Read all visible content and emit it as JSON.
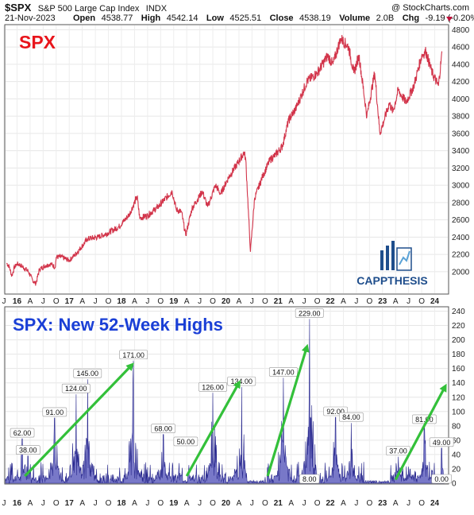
{
  "header": {
    "symbol": "$SPX",
    "name": "S&P 500 Large Cap Index",
    "exchange": "INDX",
    "copyright": "@ StockCharts.com",
    "date": "21-Nov-2023",
    "open_label": "Open",
    "open": "4538.77",
    "high_label": "High",
    "high": "4542.14",
    "low_label": "Low",
    "low": "4525.51",
    "close_label": "Close",
    "close": "4538.19",
    "volume_label": "Volume",
    "volume": "2.0B",
    "chg_label": "Chg",
    "chg": "-9.19 (-0.20%)"
  },
  "logo": {
    "text": "CAPPTHESIS"
  },
  "colors": {
    "price_line": "#d2344a",
    "highs_fill": "#7878c8",
    "highs_line": "#2a2a8e",
    "arrow": "#33c03a",
    "spx_label": "#e8141b",
    "panel2_label": "#1a3fd6",
    "logo_blue": "#1f4e8c"
  },
  "chart_data": [
    {
      "type": "line",
      "title": "SPX",
      "x_tick_labels": [
        "J",
        "16",
        "A",
        "J",
        "O",
        "17",
        "A",
        "J",
        "O",
        "18",
        "A",
        "J",
        "O",
        "19",
        "A",
        "J",
        "O",
        "20",
        "A",
        "J",
        "O",
        "21",
        "A",
        "J",
        "O",
        "22",
        "A",
        "J",
        "O",
        "23",
        "A",
        "J",
        "O",
        "24"
      ],
      "yticks": [
        2000,
        2200,
        2400,
        2600,
        2800,
        3000,
        3200,
        3400,
        3600,
        3800,
        4000,
        4200,
        4400,
        4600,
        4800
      ],
      "ylim": [
        1750,
        4850
      ],
      "x_units": "years",
      "xlim": [
        2015.53,
        2024.0
      ],
      "series": [
        {
          "x": [
            2015.55,
            2015.6,
            2015.65,
            2015.7,
            2015.75,
            2015.8,
            2015.88,
            2015.96,
            2016.05,
            2016.11,
            2016.18,
            2016.3,
            2016.4,
            2016.48,
            2016.5,
            2016.6,
            2016.75,
            2016.85,
            2016.95,
            2017.1,
            2017.3,
            2017.5,
            2017.7,
            2017.9,
            2018.05,
            2018.1,
            2018.25,
            2018.45,
            2018.72,
            2018.8,
            2018.9,
            2018.98,
            2019.1,
            2019.3,
            2019.4,
            2019.55,
            2019.65,
            2019.8,
            2019.95,
            2020.1,
            2020.13,
            2020.22,
            2020.3,
            2020.45,
            2020.6,
            2020.7,
            2020.83,
            2020.95,
            2021.1,
            2021.3,
            2021.5,
            2021.7,
            2021.8,
            2021.95,
            2022.1,
            2022.2,
            2022.3,
            2022.45,
            2022.6,
            2022.7,
            2022.78,
            2022.88,
            2022.95,
            2023.05,
            2023.2,
            2023.35,
            2023.5,
            2023.58,
            2023.7,
            2023.82,
            2023.89
          ],
          "y": [
            2100,
            2060,
            1950,
            2050,
            2090,
            2080,
            2045,
            2010,
            1900,
            1860,
            2030,
            2070,
            2090,
            2050,
            2170,
            2170,
            2130,
            2190,
            2260,
            2380,
            2400,
            2450,
            2520,
            2660,
            2870,
            2620,
            2650,
            2750,
            2930,
            2720,
            2690,
            2420,
            2730,
            2930,
            2750,
            3000,
            2900,
            3090,
            3230,
            3380,
            3300,
            2230,
            2850,
            3100,
            3300,
            3350,
            3450,
            3750,
            3900,
            4200,
            4300,
            4500,
            4400,
            4700,
            4600,
            4300,
            4500,
            3800,
            4300,
            3600,
            3750,
            3950,
            3850,
            4100,
            3960,
            4150,
            4500,
            4550,
            4300,
            4150,
            4538
          ]
        }
      ]
    },
    {
      "type": "area",
      "title": "SPX: New 52-Week Highs",
      "x_tick_labels": [
        "J",
        "16",
        "A",
        "J",
        "O",
        "17",
        "A",
        "J",
        "O",
        "18",
        "A",
        "J",
        "O",
        "19",
        "A",
        "J",
        "O",
        "20",
        "A",
        "J",
        "O",
        "21",
        "A",
        "J",
        "O",
        "22",
        "A",
        "J",
        "O",
        "23",
        "A",
        "J",
        "O",
        "24"
      ],
      "yticks": [
        0,
        20,
        40,
        60,
        80,
        100,
        120,
        140,
        160,
        180,
        200,
        220,
        240
      ],
      "ylim": [
        0,
        245
      ],
      "x_units": "years",
      "xlim": [
        2015.53,
        2024.0
      ],
      "peaks": [
        {
          "x": 2015.85,
          "y": 62,
          "label": "62.00"
        },
        {
          "x": 2015.96,
          "y": 38,
          "label": "38.00"
        },
        {
          "x": 2016.47,
          "y": 91,
          "label": "91.00"
        },
        {
          "x": 2016.88,
          "y": 124,
          "label": "124.00"
        },
        {
          "x": 2017.1,
          "y": 145,
          "label": "145.00"
        },
        {
          "x": 2017.98,
          "y": 171,
          "label": "171.00"
        },
        {
          "x": 2018.55,
          "y": 68,
          "label": "68.00"
        },
        {
          "x": 2018.98,
          "y": 50,
          "label": "50.00"
        },
        {
          "x": 2019.5,
          "y": 126,
          "label": "126.00"
        },
        {
          "x": 2020.05,
          "y": 134,
          "label": "134.00"
        },
        {
          "x": 2020.85,
          "y": 147,
          "label": "147.00"
        },
        {
          "x": 2021.35,
          "y": 229,
          "label": "229.00"
        },
        {
          "x": 2021.35,
          "y": 8,
          "label": "8.00"
        },
        {
          "x": 2021.85,
          "y": 92,
          "label": "92.00"
        },
        {
          "x": 2022.15,
          "y": 84,
          "label": "84.00"
        },
        {
          "x": 2023.05,
          "y": 37,
          "label": "37.00"
        },
        {
          "x": 2023.55,
          "y": 81,
          "label": "81.00"
        },
        {
          "x": 2023.88,
          "y": 49,
          "label": "49.00"
        },
        {
          "x": 2023.88,
          "y": 0,
          "label": "0.00"
        }
      ],
      "trend_arrows": [
        {
          "from": [
            2015.9,
            10
          ],
          "to": [
            2017.95,
            165
          ]
        },
        {
          "from": [
            2019.0,
            10
          ],
          "to": [
            2020.0,
            140
          ]
        },
        {
          "from": [
            2020.55,
            10
          ],
          "to": [
            2021.3,
            190
          ]
        },
        {
          "from": [
            2023.0,
            5
          ],
          "to": [
            2023.95,
            135
          ]
        }
      ]
    }
  ]
}
